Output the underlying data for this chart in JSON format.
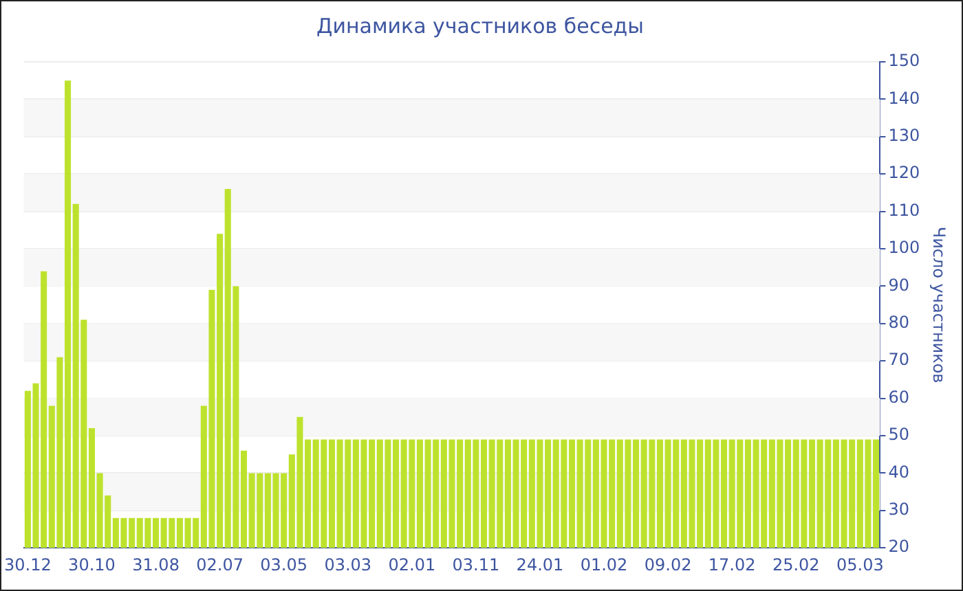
{
  "chart_data": {
    "type": "bar",
    "title": "Динамика участников беседы",
    "ylabel": "Число участников",
    "categories": [
      "30.12",
      null,
      null,
      null,
      null,
      null,
      null,
      null,
      "30.10",
      null,
      null,
      null,
      null,
      null,
      null,
      null,
      "31.08",
      null,
      null,
      null,
      null,
      null,
      null,
      null,
      "02.07",
      null,
      null,
      null,
      null,
      null,
      null,
      null,
      "03.05",
      null,
      null,
      null,
      null,
      null,
      null,
      null,
      "03.03",
      null,
      null,
      null,
      null,
      null,
      null,
      null,
      "02.01",
      null,
      null,
      null,
      null,
      null,
      null,
      null,
      "03.11",
      null,
      null,
      null,
      null,
      null,
      null,
      null,
      "24.01",
      null,
      null,
      null,
      null,
      null,
      null,
      null,
      "01.02",
      null,
      null,
      null,
      null,
      null,
      null,
      null,
      "09.02",
      null,
      null,
      null,
      null,
      null,
      null,
      null,
      "17.02",
      null,
      null,
      null,
      null,
      null,
      null,
      null,
      "25.02",
      null,
      null,
      null,
      null,
      null,
      null,
      null,
      "05.03",
      null,
      null
    ],
    "values": [
      62,
      64,
      94,
      58,
      71,
      145,
      112,
      81,
      52,
      40,
      34,
      28,
      28,
      28,
      28,
      28,
      28,
      28,
      28,
      28,
      28,
      28,
      58,
      89,
      104,
      116,
      90,
      46,
      40,
      40,
      40,
      40,
      40,
      45,
      55,
      49,
      49,
      49,
      49,
      49,
      49,
      49,
      49,
      49,
      49,
      49,
      49,
      49,
      49,
      49,
      49,
      49,
      49,
      49,
      49,
      49,
      49,
      49,
      49,
      49,
      49,
      49,
      49,
      49,
      49,
      49,
      49,
      49,
      49,
      49,
      49,
      49,
      49,
      49,
      49,
      49,
      49,
      49,
      49,
      49,
      49,
      49,
      49,
      49,
      49,
      49,
      49,
      49,
      49,
      49,
      49,
      49,
      49,
      49,
      49,
      49,
      49,
      49,
      49,
      49,
      49,
      49,
      49,
      49,
      49,
      49,
      49
    ],
    "color": "#bde22d",
    "ylim": [
      20,
      150
    ],
    "yticks": [
      20,
      30,
      40,
      50,
      60,
      70,
      80,
      90,
      100,
      110,
      120,
      130,
      140,
      150
    ],
    "grid": "y"
  }
}
